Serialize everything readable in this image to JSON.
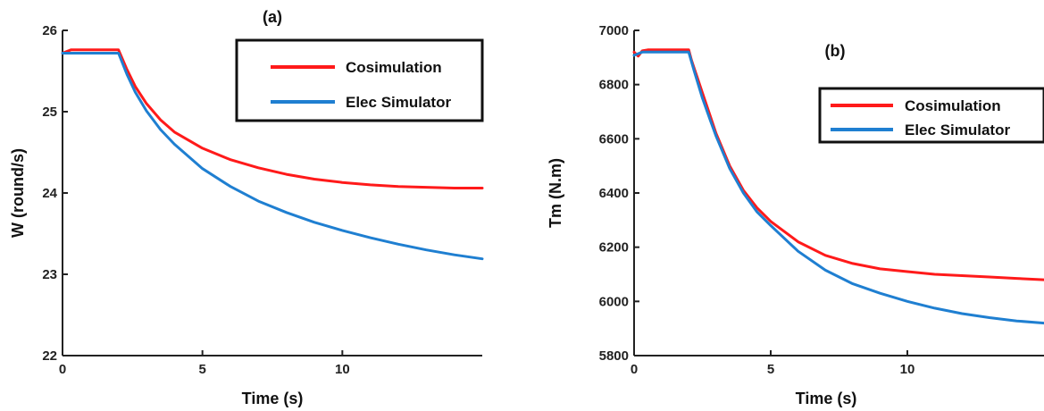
{
  "colors": {
    "cosimulation": "#ff1a1a",
    "elec_simulator": "#1f7fd1",
    "axis": "#222222"
  },
  "chart_data": [
    {
      "type": "line",
      "panel_label": "(a)",
      "xlabel": "Time (s)",
      "ylabel": "W (round/s)",
      "xlim": [
        0,
        15
      ],
      "ylim": [
        22,
        26
      ],
      "xticks": [
        0,
        5,
        10
      ],
      "yticks": [
        22,
        23,
        24,
        25,
        26
      ],
      "legend_position": "top-right",
      "series": [
        {
          "name": "Cosimulation",
          "color": "#ff1a1a",
          "x": [
            0,
            0.3,
            2.0,
            2.3,
            2.6,
            3,
            3.5,
            4,
            5,
            6,
            7,
            8,
            9,
            10,
            11,
            12,
            13,
            14,
            15
          ],
          "y": [
            25.72,
            25.76,
            25.76,
            25.52,
            25.31,
            25.1,
            24.9,
            24.75,
            24.55,
            24.41,
            24.31,
            24.23,
            24.17,
            24.13,
            24.1,
            24.08,
            24.07,
            24.06,
            24.06
          ]
        },
        {
          "name": "Elec Simulator",
          "color": "#1f7fd1",
          "x": [
            0,
            2.0,
            2.3,
            2.6,
            3,
            3.5,
            4,
            5,
            6,
            7,
            8,
            9,
            10,
            11,
            12,
            13,
            14,
            15
          ],
          "y": [
            25.72,
            25.72,
            25.46,
            25.24,
            25.01,
            24.78,
            24.6,
            24.3,
            24.08,
            23.9,
            23.76,
            23.64,
            23.54,
            23.45,
            23.37,
            23.3,
            23.24,
            23.19
          ]
        }
      ]
    },
    {
      "type": "line",
      "panel_label": "(b)",
      "xlabel": "Time (s)",
      "ylabel": "Tm (N.m)",
      "xlim": [
        0,
        15
      ],
      "ylim": [
        5800,
        7000
      ],
      "xticks": [
        0,
        5,
        10
      ],
      "yticks": [
        5800,
        6000,
        6200,
        6400,
        6600,
        6800,
        7000
      ],
      "legend_position": "top-right",
      "series": [
        {
          "name": "Cosimulation",
          "color": "#ff1a1a",
          "x": [
            0,
            0.15,
            0.3,
            0.5,
            2.0,
            2.1,
            2.2,
            2.3,
            2.5,
            2.8,
            3,
            3.5,
            4,
            4.5,
            5,
            6,
            7,
            8,
            9,
            10,
            11,
            12,
            13,
            14,
            15
          ],
          "y": [
            6920,
            6905,
            6925,
            6928,
            6928,
            6890,
            6860,
            6830,
            6770,
            6680,
            6620,
            6500,
            6410,
            6345,
            6295,
            6220,
            6170,
            6140,
            6120,
            6110,
            6100,
            6095,
            6090,
            6085,
            6080
          ]
        },
        {
          "name": "Elec Simulator",
          "color": "#1f7fd1",
          "x": [
            0,
            0.3,
            2.0,
            2.2,
            2.5,
            2.8,
            3,
            3.5,
            4,
            4.5,
            5,
            6,
            7,
            8,
            9,
            10,
            11,
            12,
            13,
            14,
            15
          ],
          "y": [
            6908,
            6920,
            6920,
            6850,
            6750,
            6665,
            6610,
            6490,
            6400,
            6330,
            6280,
            6185,
            6115,
            6065,
            6030,
            6000,
            5975,
            5955,
            5940,
            5928,
            5920
          ]
        }
      ]
    }
  ]
}
